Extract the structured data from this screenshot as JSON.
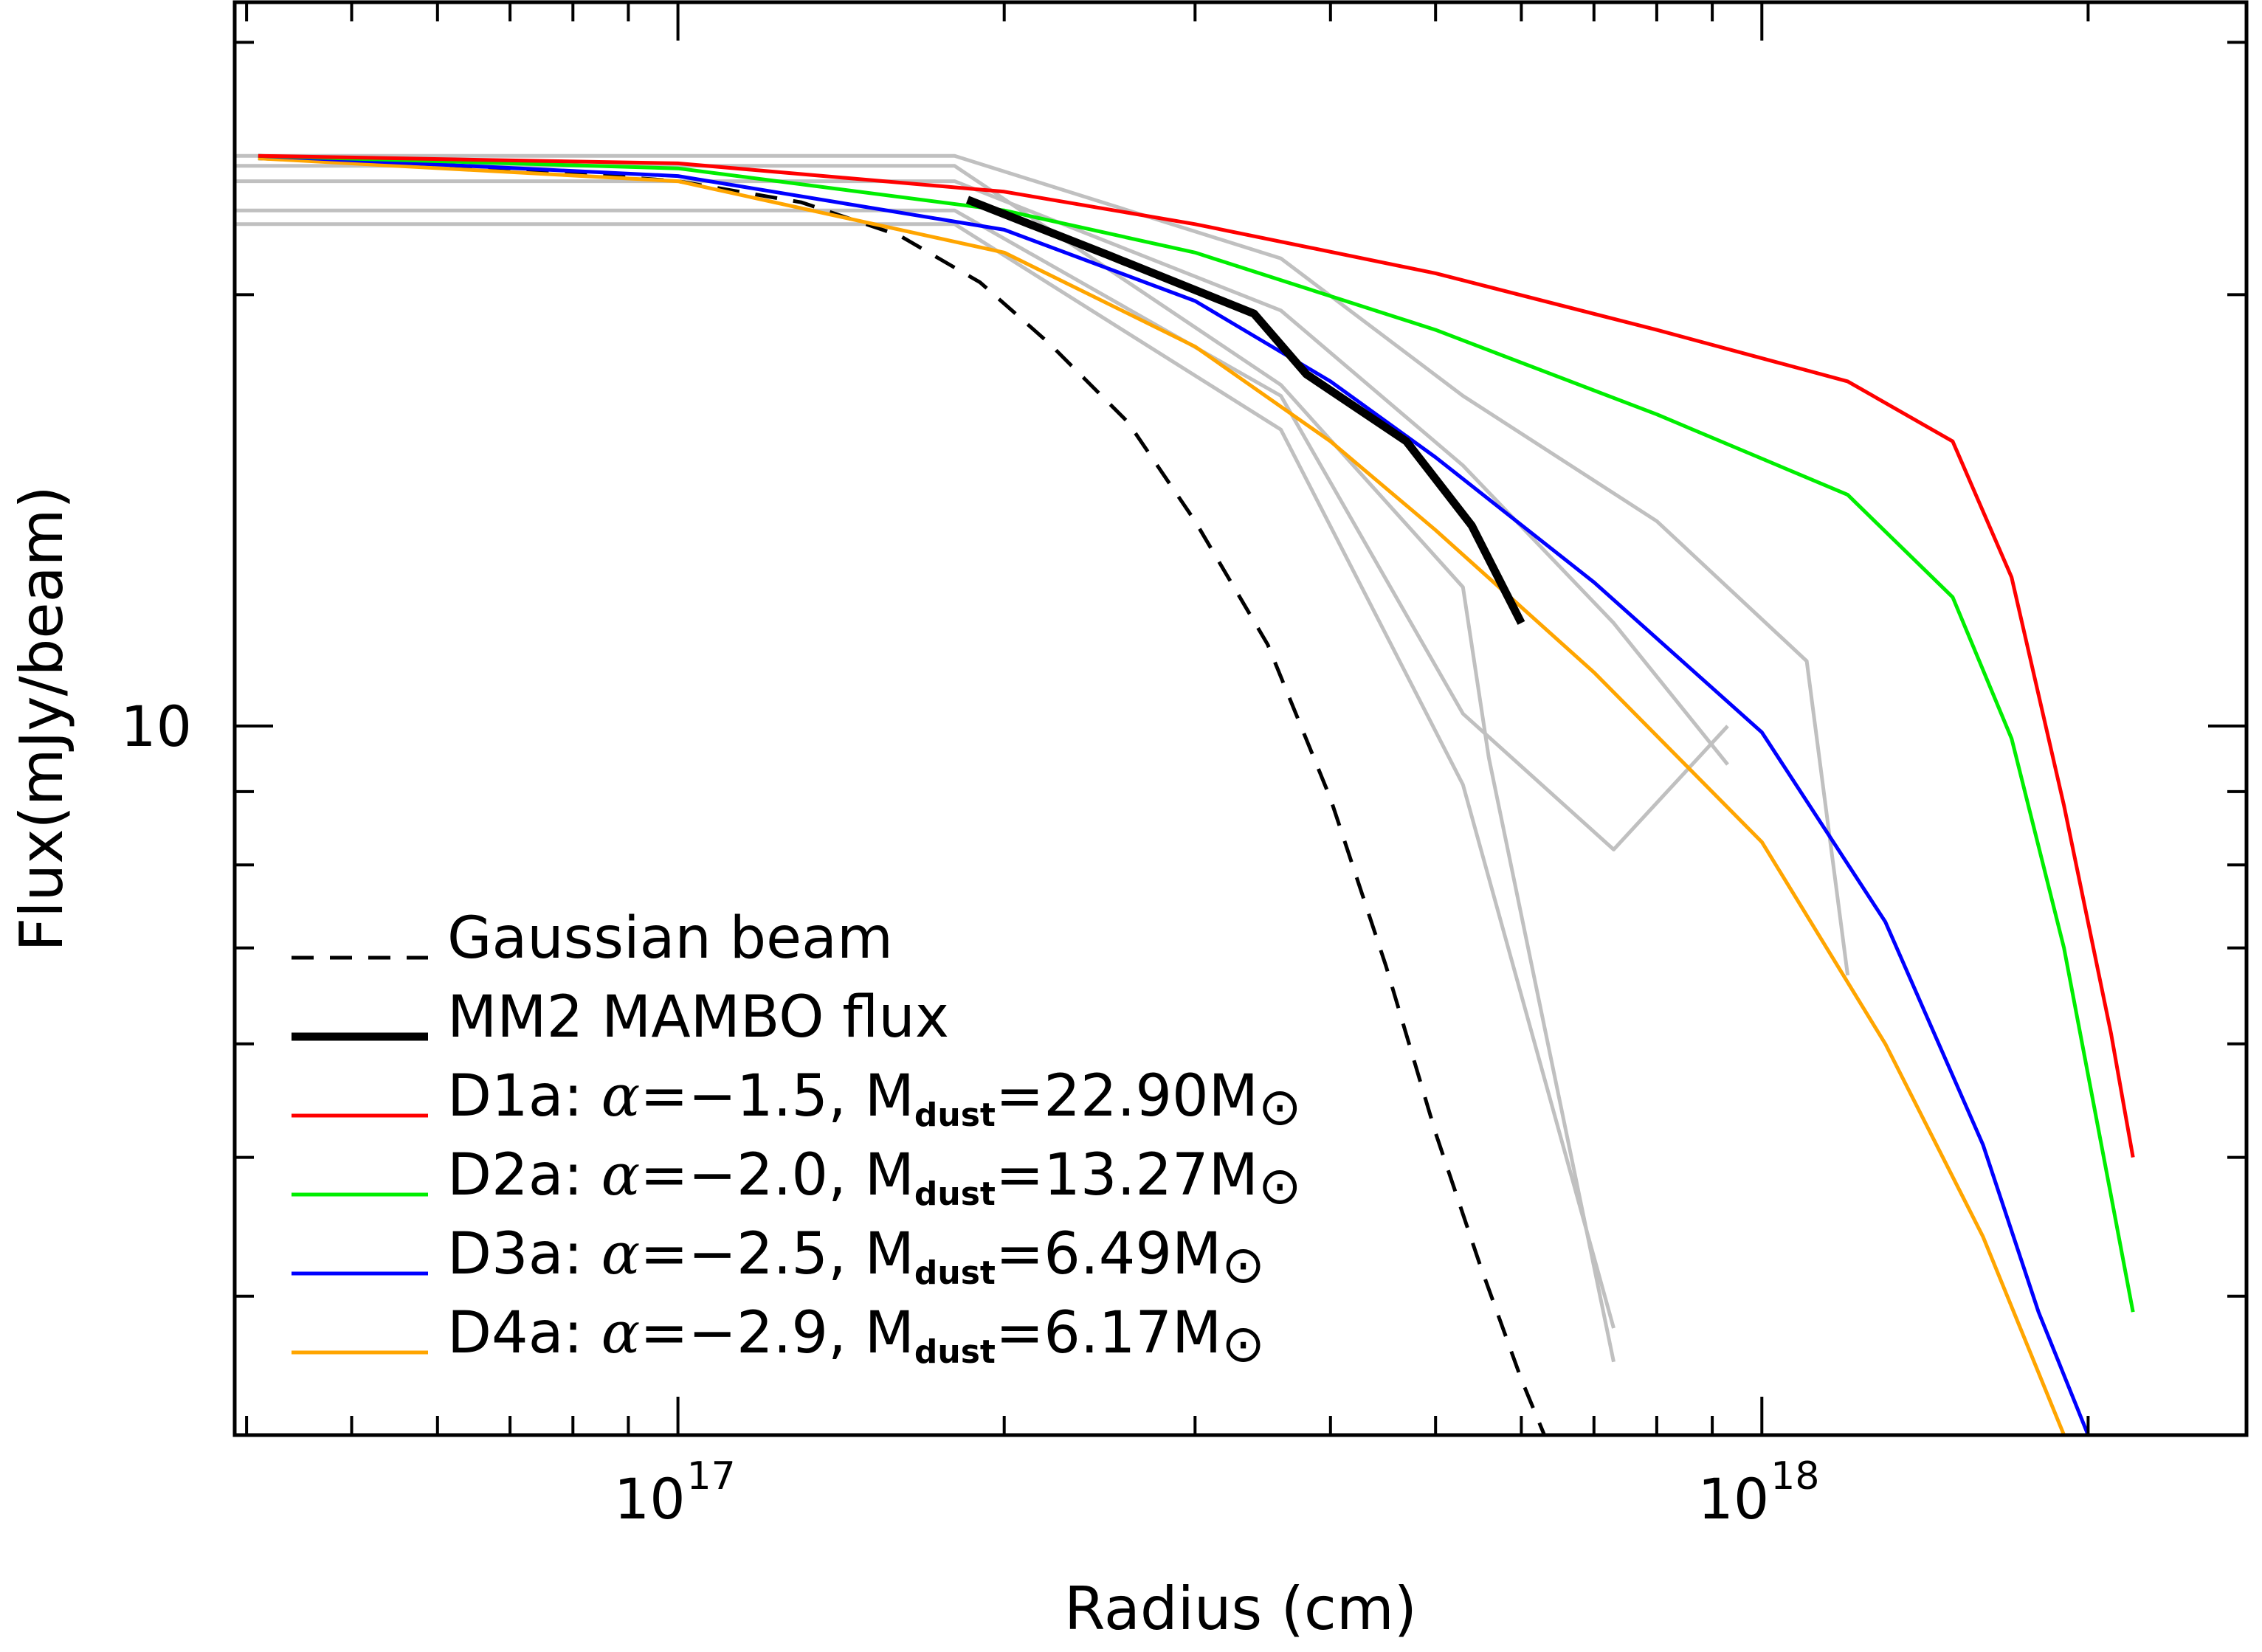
{
  "chart_data": {
    "type": "line",
    "xlabel": "Radius (cm)",
    "ylabel": "Flux(mJy/beam)",
    "x_scale": "log",
    "y_scale": "log",
    "xlim": [
      3.9e+16,
      2.8e+18
    ],
    "ylim": [
      3.2,
      32
    ],
    "x_ticks": [
      {
        "value": 1e+17,
        "base": "10",
        "exp": "17"
      },
      {
        "value": 1e+18,
        "base": "10",
        "exp": "18"
      }
    ],
    "y_ticks": [
      {
        "value": 10,
        "label": "10"
      }
    ],
    "legend_position": "bottom-left",
    "series": [
      {
        "name": "Gaussian beam",
        "color": "#000000",
        "style": "dashed",
        "x": [
          4.1e+16,
          7e+16,
          1e+17,
          1.3e+17,
          1.6e+17,
          1.9e+17,
          2.2e+17,
          2.6e+17,
          3e+17,
          3.5e+17,
          4e+17,
          4.5e+17,
          5e+17,
          5.5e+17,
          6e+17,
          6.3e+17
        ],
        "y": [
          24.9,
          24.5,
          24.0,
          23.2,
          22.0,
          20.4,
          18.5,
          16.3,
          13.9,
          11.4,
          8.9,
          6.8,
          5.2,
          4.2,
          3.5,
          3.2
        ]
      },
      {
        "name": "MM2 MAMBO flux",
        "color": "#000000",
        "style": "solid-thick",
        "x": [
          1.85e+17,
          2.5e+17,
          3.4e+17,
          3.8e+17,
          4.7e+17,
          5.4e+17,
          6e+17
        ],
        "y": [
          23.3,
          21.3,
          19.4,
          17.6,
          15.8,
          13.8,
          11.8
        ]
      },
      {
        "name": "D1a: α=−1.5, Mdust=22.90M⊙",
        "color": "#ff0000",
        "style": "solid",
        "x": [
          4.1e+16,
          1e+17,
          2e+17,
          3e+17,
          5e+17,
          8e+17,
          1.2e+18,
          1.5e+18,
          1.7e+18,
          1.9e+18,
          2.1e+18,
          2.2e+18
        ],
        "y": [
          25.0,
          24.7,
          23.6,
          22.4,
          20.7,
          18.9,
          17.4,
          15.8,
          12.7,
          8.8,
          6.1,
          5.0
        ]
      },
      {
        "name": "D2a: α=−2.0, Mdust=13.27M⊙",
        "color": "#00ee00",
        "style": "solid",
        "x": [
          4.1e+16,
          1e+17,
          2e+17,
          3e+17,
          5e+17,
          8e+17,
          1.2e+18,
          1.5e+18,
          1.7e+18,
          1.9e+18,
          2.1e+18,
          2.2e+18
        ],
        "y": [
          25.0,
          24.5,
          22.9,
          21.4,
          18.9,
          16.5,
          14.5,
          12.3,
          9.8,
          7.0,
          4.7,
          3.9
        ]
      },
      {
        "name": "D3a: α=−2.5, Mdust=6.49M⊙",
        "color": "#0000ff",
        "style": "solid",
        "x": [
          4.1e+16,
          1e+17,
          2e+17,
          3e+17,
          4e+17,
          5e+17,
          7e+17,
          1e+18,
          1.3e+18,
          1.6e+18,
          1.8e+18,
          2e+18
        ],
        "y": [
          25.0,
          24.2,
          22.2,
          19.8,
          17.4,
          15.4,
          12.6,
          9.9,
          7.3,
          5.1,
          3.9,
          3.2
        ]
      },
      {
        "name": "D4a: α=−2.9, Mdust=6.17M⊙",
        "color": "#ffa500",
        "style": "solid",
        "x": [
          4.1e+16,
          1e+17,
          2e+17,
          3e+17,
          4e+17,
          5e+17,
          7e+17,
          1e+18,
          1.3e+18,
          1.6e+18,
          1.9e+18
        ],
        "y": [
          24.9,
          24.0,
          21.4,
          18.4,
          15.8,
          13.7,
          10.9,
          8.3,
          6.0,
          4.4,
          3.2
        ]
      },
      {
        "name": "",
        "color": "#c0c0c0",
        "style": "solid",
        "x": [
          3.9e+16,
          1.8e+17,
          3.6e+17,
          5.3e+17,
          8e+17,
          1.1e+18,
          1.2e+18
        ],
        "y": [
          25.0,
          25.0,
          21.2,
          17.0,
          13.9,
          11.1,
          6.7
        ]
      },
      {
        "name": "",
        "color": "#c0c0c0",
        "style": "solid",
        "x": [
          3.9e+16,
          1.8e+17,
          3.6e+17,
          5.3e+17,
          7.3e+17,
          9.3e+17
        ],
        "y": [
          24.0,
          24.0,
          19.5,
          15.2,
          11.8,
          9.4
        ]
      },
      {
        "name": "",
        "color": "#c0c0c0",
        "style": "solid",
        "x": [
          3.9e+16,
          1.8e+17,
          3.6e+17,
          5.3e+17,
          7.3e+17,
          9.3e+17
        ],
        "y": [
          22.9,
          22.9,
          17.0,
          10.2,
          8.2,
          10.0
        ]
      },
      {
        "name": "",
        "color": "#c0c0c0",
        "style": "solid",
        "x": [
          3.9e+16,
          1.8e+17,
          3.6e+17,
          5.3e+17,
          7.3e+17
        ],
        "y": [
          22.4,
          22.4,
          16.1,
          9.1,
          3.8
        ]
      },
      {
        "name": "",
        "color": "#c0c0c0",
        "style": "solid",
        "x": [
          3.9e+16,
          1.8e+17,
          3.6e+17,
          5.3e+17,
          5.6e+17,
          7.3e+17
        ],
        "y": [
          24.6,
          24.6,
          17.3,
          12.5,
          9.5,
          3.6
        ]
      }
    ],
    "legend": [
      {
        "text": "Gaussian beam",
        "color": "#000000",
        "style": "dashed"
      },
      {
        "text": "MM2 MAMBO flux",
        "color": "#000000",
        "style": "solid-thick"
      },
      {
        "prefix": "D1a: ",
        "alpha": "α",
        "value": "=−1.5, M",
        "sub": "dust",
        "mass": "=22.90M",
        "sun": "⊙",
        "color": "#ff0000",
        "style": "solid"
      },
      {
        "prefix": "D2a: ",
        "alpha": "α",
        "value": "=−2.0, M",
        "sub": "dust",
        "mass": "=13.27M",
        "sun": "⊙",
        "color": "#00ee00",
        "style": "solid"
      },
      {
        "prefix": "D3a: ",
        "alpha": "α",
        "value": "=−2.5, M",
        "sub": "dust",
        "mass": "=6.49M",
        "sun": "⊙",
        "color": "#0000ff",
        "style": "solid"
      },
      {
        "prefix": "D4a: ",
        "alpha": "α",
        "value": "=−2.9, M",
        "sub": "dust",
        "mass": "=6.17M",
        "sun": "⊙",
        "color": "#ffa500",
        "style": "solid"
      }
    ]
  }
}
